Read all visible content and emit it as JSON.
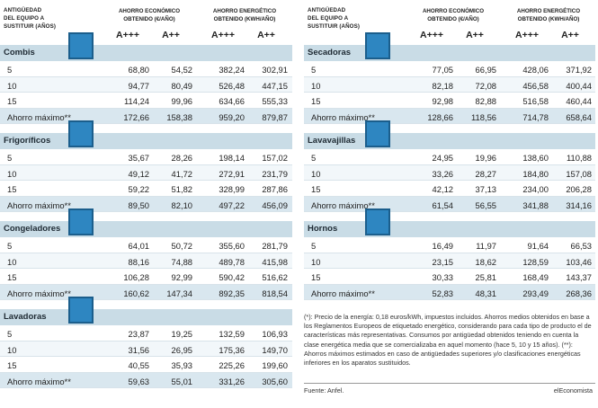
{
  "header": {
    "age_label_1": "ANTIGÜEDAD",
    "age_label_2": "DEL EQUIPO A",
    "age_label_3": "SUSTITUIR (AÑOS)",
    "economic_1": "AHORRO ECONÓMICO",
    "economic_2": "OBTENIDO (€/AÑO)",
    "energy_1": "AHORRO ENERGÉTICO",
    "energy_2": "OBTENIDO (KWH/AÑO)",
    "class_a3": "A+++",
    "class_a2": "A++"
  },
  "left": [
    {
      "name": "Combis",
      "icon": "fridge-combi-icon",
      "rows": [
        [
          "5",
          "68,80",
          "54,52",
          "382,24",
          "302,91"
        ],
        [
          "10",
          "94,77",
          "80,49",
          "526,48",
          "447,15"
        ],
        [
          "15",
          "114,24",
          "99,96",
          "634,66",
          "555,33"
        ],
        [
          "Ahorro máximo**",
          "172,66",
          "158,38",
          "959,20",
          "879,87"
        ]
      ]
    },
    {
      "name": "Frigoríficos",
      "icon": "fridge-icon",
      "rows": [
        [
          "5",
          "35,67",
          "28,26",
          "198,14",
          "157,02"
        ],
        [
          "10",
          "49,12",
          "41,72",
          "272,91",
          "231,79"
        ],
        [
          "15",
          "59,22",
          "51,82",
          "328,99",
          "287,86"
        ],
        [
          "Ahorro máximo**",
          "89,50",
          "82,10",
          "497,22",
          "456,09"
        ]
      ]
    },
    {
      "name": "Congeladores",
      "icon": "freezer-icon",
      "rows": [
        [
          "5",
          "64,01",
          "50,72",
          "355,60",
          "281,79"
        ],
        [
          "10",
          "88,16",
          "74,88",
          "489,78",
          "415,98"
        ],
        [
          "15",
          "106,28",
          "92,99",
          "590,42",
          "516,62"
        ],
        [
          "Ahorro máximo**",
          "160,62",
          "147,34",
          "892,35",
          "818,54"
        ]
      ]
    },
    {
      "name": "Lavadoras",
      "icon": "washing-machine-icon",
      "rows": [
        [
          "5",
          "23,87",
          "19,25",
          "132,59",
          "106,93"
        ],
        [
          "10",
          "31,56",
          "26,95",
          "175,36",
          "149,70"
        ],
        [
          "15",
          "40,55",
          "35,93",
          "225,26",
          "199,60"
        ],
        [
          "Ahorro máximo**",
          "59,63",
          "55,01",
          "331,26",
          "305,60"
        ]
      ]
    }
  ],
  "right": [
    {
      "name": "Secadoras",
      "icon": "dryer-icon",
      "rows": [
        [
          "5",
          "77,05",
          "66,95",
          "428,06",
          "371,92"
        ],
        [
          "10",
          "82,18",
          "72,08",
          "456,58",
          "400,44"
        ],
        [
          "15",
          "92,98",
          "82,88",
          "516,58",
          "460,44"
        ],
        [
          "Ahorro máximo**",
          "128,66",
          "118,56",
          "714,78",
          "658,64"
        ]
      ]
    },
    {
      "name": "Lavavajillas",
      "icon": "dishwasher-icon",
      "rows": [
        [
          "5",
          "24,95",
          "19,96",
          "138,60",
          "110,88"
        ],
        [
          "10",
          "33,26",
          "28,27",
          "184,80",
          "157,08"
        ],
        [
          "15",
          "42,12",
          "37,13",
          "234,00",
          "206,28"
        ],
        [
          "Ahorro máximo**",
          "61,54",
          "56,55",
          "341,88",
          "314,16"
        ]
      ]
    },
    {
      "name": "Hornos",
      "icon": "oven-icon",
      "rows": [
        [
          "5",
          "16,49",
          "11,97",
          "91,64",
          "66,53"
        ],
        [
          "10",
          "23,15",
          "18,62",
          "128,59",
          "103,46"
        ],
        [
          "15",
          "30,33",
          "25,81",
          "168,49",
          "143,37"
        ],
        [
          "Ahorro máximo**",
          "52,83",
          "48,31",
          "293,49",
          "268,36"
        ]
      ]
    }
  ],
  "footnote": "(*): Precio de la energía: 0,18 euros/kWh, impuestos incluidos. Ahorros medios obtenidos en base a los Reglamentos Europeos de etiquetado energético, considerando para cada tipo de producto el de características más representativas. Consumos por antigüedad obtenidos teniendo en cuenta la clase energética media que se comercializaba en aquel momento (hace 5, 10 y 15 años). (**): Ahorros máximos estimados en caso de antigüedades superiores y/o clasificaciones energéticas inferiores en los aparatos sustituidos.",
  "source": "Fuente: Anfel.",
  "brand": "elEconomista",
  "colors": {
    "bar": "#c9dce6",
    "icon": "#2e86c1"
  }
}
